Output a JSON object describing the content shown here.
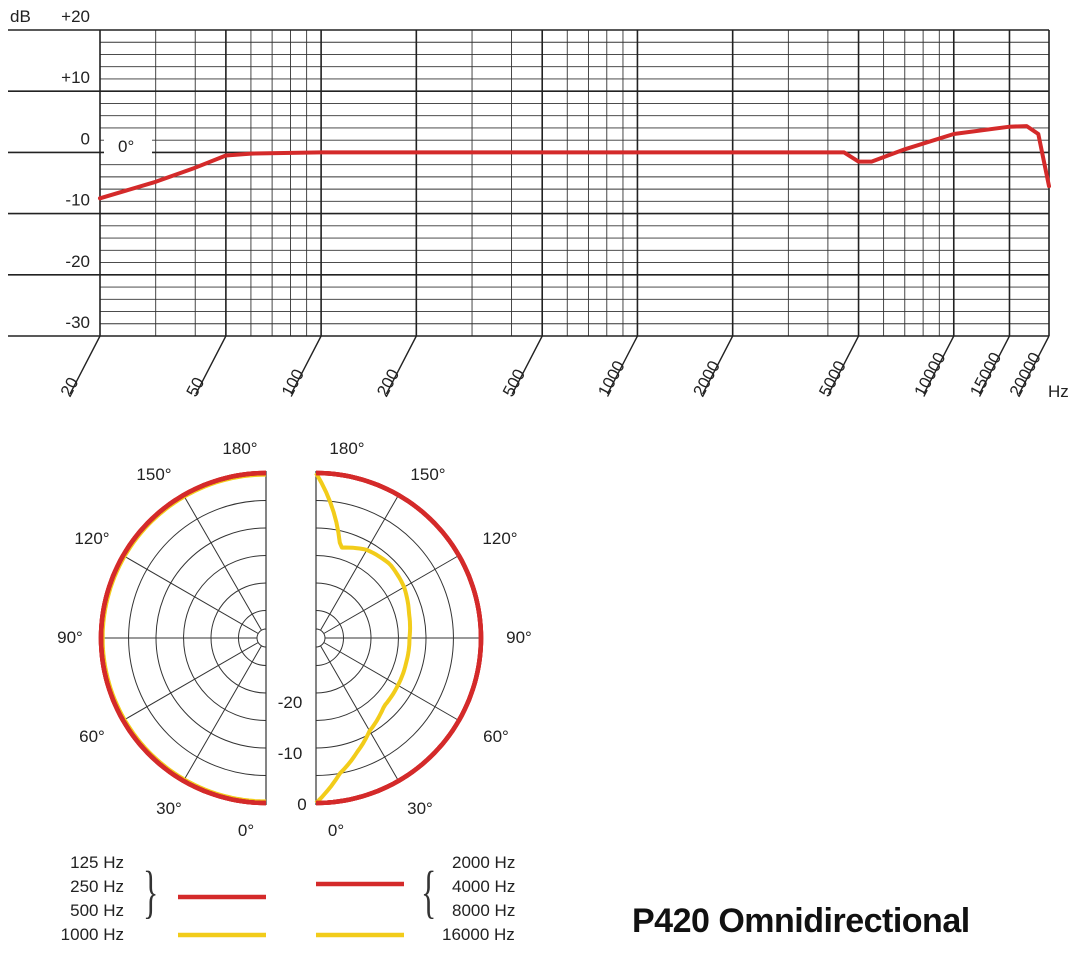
{
  "chart_data": [
    {
      "type": "line",
      "xscale": "log",
      "xlabel": "Hz",
      "ylabel": "dB",
      "xlim": [
        20,
        20000
      ],
      "ylim": [
        -30,
        20
      ],
      "x_ticks": [
        20,
        50,
        100,
        200,
        500,
        1000,
        2000,
        5000,
        10000,
        15000,
        20000
      ],
      "x_tick_labels": [
        "20",
        "50",
        "100",
        "200",
        "500",
        "1000",
        "2000",
        "5000",
        "10000",
        "15000",
        "20000"
      ],
      "y_ticks": [
        20,
        10,
        0,
        -10,
        -20,
        -30
      ],
      "y_tick_labels": [
        "+20",
        "+10",
        "0",
        "-10",
        "-20",
        "-30"
      ],
      "grid": true,
      "annotations": [
        "0°"
      ],
      "series": [
        {
          "color": "#d42a2a",
          "x": [
            20,
            30,
            40,
            50,
            60,
            100,
            200,
            500,
            1000,
            2000,
            4500,
            5000,
            5500,
            7000,
            10000,
            15000,
            17000,
            18500,
            20000
          ],
          "y": [
            -7.5,
            -4.8,
            -2.5,
            -0.5,
            -0.2,
            0,
            0,
            0,
            0,
            0,
            0,
            -1.5,
            -1.5,
            0.5,
            3,
            4.2,
            4.3,
            3,
            -5.5
          ]
        }
      ]
    },
    {
      "type": "polar",
      "angle_labels": [
        "180°",
        "150°",
        "120°",
        "90°",
        "60°",
        "30°",
        "0°"
      ],
      "radial_labels": [
        "-20",
        "-10",
        "0"
      ],
      "series": [
        {
          "name": "125 Hz",
          "color": "#d42a2a",
          "side": "left",
          "angles": [
            0,
            180
          ],
          "levels": [
            0,
            0
          ]
        },
        {
          "name": "250 Hz",
          "color": "#d42a2a",
          "side": "left",
          "angles": [
            0,
            180
          ],
          "levels": [
            0,
            0
          ]
        },
        {
          "name": "500 Hz",
          "color": "#d42a2a",
          "side": "left",
          "angles": [
            0,
            180
          ],
          "levels": [
            0,
            0
          ]
        },
        {
          "name": "1000 Hz",
          "color": "#f2cc1a",
          "side": "left",
          "angles": [
            0,
            180
          ],
          "levels": [
            -0.3,
            -0.3
          ]
        },
        {
          "name": "2000 Hz",
          "color": "#d42a2a",
          "side": "right",
          "angles": [
            0,
            180
          ],
          "levels": [
            0,
            0
          ]
        },
        {
          "name": "4000 Hz",
          "color": "#d42a2a",
          "side": "right",
          "angles": [
            0,
            180
          ],
          "levels": [
            0,
            0
          ]
        },
        {
          "name": "8000 Hz",
          "color": "#d42a2a",
          "side": "right",
          "angles": [
            0,
            180
          ],
          "levels": [
            0,
            0
          ]
        },
        {
          "name": "16000 Hz",
          "color": "#f2cc1a",
          "side": "right",
          "angles": [
            0,
            10,
            20,
            30,
            45,
            60,
            75,
            90,
            105,
            120,
            135,
            150,
            165,
            180
          ],
          "levels": [
            0,
            -5,
            -8,
            -10.5,
            -12.5,
            -12.8,
            -13,
            -13,
            -12.5,
            -11.5,
            -11,
            -11.5,
            -13,
            0
          ]
        }
      ]
    }
  ],
  "legend": {
    "left_labels": [
      "125 Hz",
      "250 Hz",
      "500 Hz",
      "1000 Hz"
    ],
    "right_labels": [
      "2000 Hz",
      "4000 Hz",
      "8000 Hz",
      "16000 Hz"
    ],
    "brace_left": "}",
    "brace_right": "{",
    "red": "#d42a2a",
    "yellow": "#f2cc1a"
  },
  "title": "P420 Omnidirectional"
}
